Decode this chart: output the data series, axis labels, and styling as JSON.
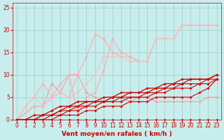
{
  "xlabel": "Vent moyen/en rafales ( km/h )",
  "xlim": [
    -0.5,
    23.5
  ],
  "ylim": [
    0,
    26
  ],
  "yticks": [
    0,
    5,
    10,
    15,
    20,
    25
  ],
  "xticks": [
    0,
    1,
    2,
    3,
    4,
    5,
    6,
    7,
    8,
    9,
    10,
    11,
    12,
    13,
    14,
    15,
    16,
    17,
    18,
    19,
    20,
    21,
    22,
    23
  ],
  "bg_color": "#c8eded",
  "grid_color": "#a0c8c8",
  "lines": [
    {
      "x": [
        0,
        1,
        2,
        3,
        4,
        5,
        6,
        7,
        8,
        9,
        10,
        11,
        12,
        13,
        14,
        15,
        16,
        17,
        18,
        19,
        20,
        21,
        22,
        23
      ],
      "y": [
        0,
        0,
        0,
        0,
        0,
        0,
        0,
        0,
        0,
        0,
        0,
        0,
        0,
        0,
        0,
        0,
        0,
        0,
        0,
        0,
        0,
        0,
        0,
        0
      ],
      "color": "#dd0000",
      "lw": 0.8,
      "marker": "D",
      "ms": 1.8,
      "zorder": 3
    },
    {
      "x": [
        0,
        1,
        2,
        3,
        4,
        5,
        6,
        7,
        8,
        9,
        10,
        11,
        12,
        13,
        14,
        15,
        16,
        17,
        18,
        19,
        20,
        21,
        22,
        23
      ],
      "y": [
        0,
        0,
        0,
        0,
        0,
        1,
        1,
        1,
        2,
        2,
        3,
        3,
        3,
        4,
        4,
        4,
        5,
        5,
        5,
        5,
        5,
        6,
        7,
        9
      ],
      "color": "#dd0000",
      "lw": 0.8,
      "marker": "D",
      "ms": 1.8,
      "zorder": 3
    },
    {
      "x": [
        0,
        1,
        2,
        3,
        4,
        5,
        6,
        7,
        8,
        9,
        10,
        11,
        12,
        13,
        14,
        15,
        16,
        17,
        18,
        19,
        20,
        21,
        22,
        23
      ],
      "y": [
        0,
        0,
        0,
        0,
        1,
        1,
        2,
        2,
        3,
        3,
        4,
        4,
        4,
        5,
        5,
        5,
        6,
        6,
        7,
        7,
        7,
        8,
        8,
        9
      ],
      "color": "#dd0000",
      "lw": 0.8,
      "marker": "D",
      "ms": 1.8,
      "zorder": 3
    },
    {
      "x": [
        0,
        1,
        2,
        3,
        4,
        5,
        6,
        7,
        8,
        9,
        10,
        11,
        12,
        13,
        14,
        15,
        16,
        17,
        18,
        19,
        20,
        21,
        22,
        23
      ],
      "y": [
        0,
        0,
        0,
        1,
        1,
        2,
        2,
        3,
        3,
        4,
        4,
        4,
        5,
        5,
        5,
        6,
        6,
        7,
        7,
        8,
        8,
        8,
        9,
        9
      ],
      "color": "#dd0000",
      "lw": 0.8,
      "marker": "D",
      "ms": 1.8,
      "zorder": 3
    },
    {
      "x": [
        0,
        1,
        2,
        3,
        4,
        5,
        6,
        7,
        8,
        9,
        10,
        11,
        12,
        13,
        14,
        15,
        16,
        17,
        18,
        19,
        20,
        21,
        22,
        23
      ],
      "y": [
        0,
        0,
        0,
        1,
        1,
        2,
        3,
        3,
        4,
        4,
        4,
        5,
        5,
        6,
        6,
        6,
        7,
        7,
        8,
        8,
        9,
        9,
        9,
        10
      ],
      "color": "#cc0000",
      "lw": 0.9,
      "marker": "D",
      "ms": 1.8,
      "zorder": 3
    },
    {
      "x": [
        0,
        1,
        2,
        3,
        4,
        5,
        6,
        7,
        8,
        9,
        10,
        11,
        12,
        13,
        14,
        15,
        16,
        17,
        18,
        19,
        20,
        21,
        22,
        23
      ],
      "y": [
        0,
        0,
        1,
        1,
        2,
        3,
        3,
        4,
        4,
        4,
        5,
        5,
        6,
        6,
        6,
        7,
        7,
        8,
        8,
        9,
        9,
        9,
        9,
        10
      ],
      "color": "#cc0000",
      "lw": 0.9,
      "marker": "D",
      "ms": 1.8,
      "zorder": 3
    },
    {
      "x": [
        0,
        2,
        3,
        4,
        5,
        6,
        7,
        8,
        9,
        10,
        11,
        12,
        13,
        14,
        15,
        16,
        17,
        18,
        19,
        20,
        21,
        22,
        23
      ],
      "y": [
        0,
        3,
        3,
        8,
        6,
        10,
        10,
        6,
        5,
        4,
        5,
        5,
        4,
        5,
        5,
        4,
        4,
        4,
        4,
        4,
        4,
        5,
        5
      ],
      "color": "#ff9999",
      "lw": 0.8,
      "marker": "D",
      "ms": 1.8,
      "zorder": 2
    },
    {
      "x": [
        0,
        1,
        2,
        3,
        4,
        5,
        6,
        7,
        8,
        9,
        10,
        11,
        12,
        13,
        14,
        15,
        16,
        17,
        18,
        19,
        20,
        21,
        22,
        23
      ],
      "y": [
        0,
        3,
        5,
        8,
        5,
        6,
        5,
        10,
        14,
        19,
        18,
        15,
        14,
        14,
        13,
        13,
        18,
        18,
        18,
        21,
        21,
        21,
        21,
        21
      ],
      "color": "#ffaaaa",
      "lw": 0.8,
      "marker": "D",
      "ms": 1.8,
      "zorder": 2
    },
    {
      "x": [
        0,
        2,
        3,
        4,
        5,
        6,
        7,
        8,
        9,
        10,
        11,
        12,
        13,
        14,
        15,
        16,
        17,
        18,
        19,
        20,
        21,
        22,
        23
      ],
      "y": [
        0,
        3,
        3,
        5,
        8,
        10,
        1,
        5,
        6,
        11,
        18,
        15,
        14,
        13,
        13,
        18,
        18,
        18,
        21,
        21,
        21,
        21,
        21
      ],
      "color": "#ffaaaa",
      "lw": 0.8,
      "marker": "D",
      "ms": 1.8,
      "zorder": 2
    },
    {
      "x": [
        0,
        1,
        2,
        3,
        4,
        5,
        6,
        7,
        8,
        9,
        10,
        11,
        12,
        13,
        14,
        15,
        16,
        17,
        18,
        19,
        20,
        21,
        22,
        23
      ],
      "y": [
        0,
        3,
        5,
        3,
        5,
        6,
        5,
        6,
        8,
        10,
        14,
        14,
        14,
        13,
        13,
        13,
        18,
        18,
        18,
        21,
        21,
        21,
        21,
        21
      ],
      "color": "#ffbbbb",
      "lw": 0.8,
      "marker": "D",
      "ms": 1.8,
      "zorder": 2
    }
  ],
  "arrow_color": "#cc0000",
  "xlabel_color": "#cc0000",
  "xlabel_fontsize": 6.5,
  "tick_fontsize": 5.5,
  "tick_color": "#cc0000"
}
